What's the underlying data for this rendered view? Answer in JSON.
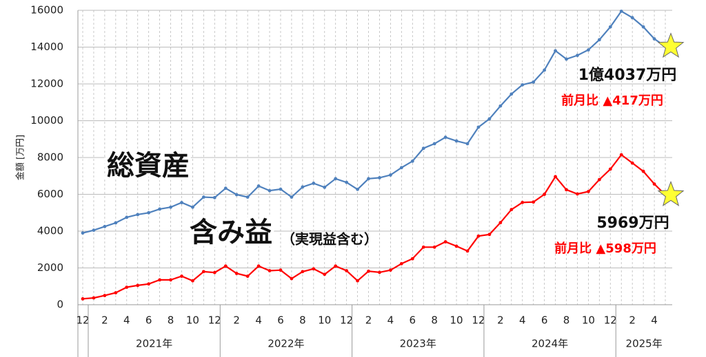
{
  "chart_data": {
    "type": "line",
    "y_label": "金額 [万円]",
    "categories": [
      "12",
      null,
      "2",
      null,
      "4",
      null,
      "6",
      null,
      "8",
      null,
      "10",
      null,
      "12",
      null,
      "2",
      null,
      "4",
      null,
      "6",
      null,
      "8",
      null,
      "10",
      null,
      "12",
      null,
      "2",
      null,
      "4",
      null,
      "6",
      null,
      "8",
      null,
      "10",
      null,
      "12",
      null,
      "2",
      null,
      "4",
      null,
      "6",
      null,
      "8",
      null,
      "10",
      null,
      "12",
      null,
      "2",
      null,
      "4",
      null
    ],
    "years": [
      "2021年",
      "2022年",
      "2023年",
      "2024年",
      "2025年"
    ],
    "series": [
      {
        "name": "総資産",
        "color": "#4f81bd",
        "values": [
          3900,
          4050,
          4250,
          4450,
          4750,
          4900,
          5000,
          5200,
          5300,
          5550,
          5300,
          5850,
          5820,
          6330,
          5980,
          5850,
          6450,
          6200,
          6280,
          5850,
          6400,
          6600,
          6380,
          6850,
          6650,
          6270,
          6850,
          6900,
          7050,
          7450,
          7800,
          8500,
          8750,
          9100,
          8900,
          8750,
          9650,
          10100,
          10800,
          11450,
          11950,
          12100,
          12750,
          13800,
          13350,
          13550,
          13850,
          14400,
          15100,
          15950,
          15600,
          15100,
          14450,
          14037
        ]
      },
      {
        "name": "含み益",
        "color": "#ff0000",
        "values": [
          320,
          370,
          500,
          650,
          950,
          1050,
          1130,
          1350,
          1350,
          1550,
          1300,
          1800,
          1750,
          2100,
          1700,
          1550,
          2100,
          1850,
          1880,
          1420,
          1800,
          1950,
          1650,
          2100,
          1850,
          1300,
          1820,
          1760,
          1880,
          2230,
          2500,
          3130,
          3130,
          3420,
          3180,
          2920,
          3730,
          3820,
          4460,
          5170,
          5560,
          5580,
          6000,
          6960,
          6250,
          6020,
          6150,
          6800,
          7370,
          8150,
          7700,
          7250,
          6560,
          5969
        ]
      }
    ],
    "annotations": [
      "（実現益含む）",
      "1億4037万円",
      "前月比 ▲417万円",
      "5969万円",
      "前月比 ▲598万円"
    ],
    "end_marker": "star",
    "ylim": [
      0,
      16000
    ],
    "yticks": [
      0,
      2000,
      4000,
      6000,
      8000,
      10000,
      12000,
      14000,
      16000
    ],
    "grid": true
  }
}
